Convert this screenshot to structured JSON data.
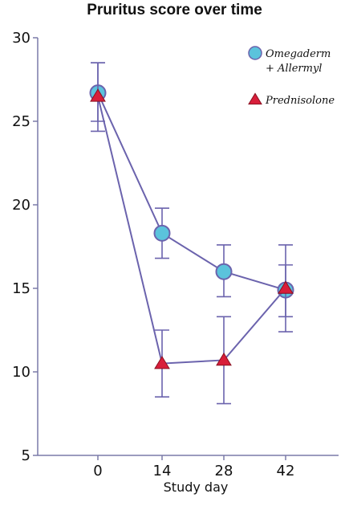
{
  "chart_data": {
    "type": "line",
    "title": "Pruritus score over time",
    "xlabel": "Study day",
    "ylabel": "",
    "x": [
      0,
      14,
      28,
      42
    ],
    "x_tick_labels": [
      "0",
      "14",
      "28",
      "42"
    ],
    "y_ticks": [
      5,
      10,
      15,
      20,
      25,
      30
    ],
    "ylim": [
      5,
      30
    ],
    "grid": false,
    "legend_position": "top-right",
    "series": [
      {
        "name_lines": [
          "Omegaderm",
          "+ Allermyl"
        ],
        "marker": "circle",
        "color": "#5bc3dc",
        "values": [
          26.7,
          18.3,
          16.0,
          14.9
        ],
        "error_low": [
          25.0,
          16.8,
          14.5,
          13.3
        ],
        "error_high": [
          28.5,
          19.8,
          17.6,
          16.4
        ]
      },
      {
        "name_lines": [
          "Prednisolone"
        ],
        "marker": "triangle",
        "color": "#d81e3a",
        "values": [
          26.5,
          10.5,
          10.7,
          15.0
        ],
        "error_low": [
          24.4,
          8.5,
          8.1,
          12.4
        ],
        "error_high": [
          28.5,
          12.5,
          13.3,
          17.6
        ]
      }
    ],
    "line_color": "#6b63ad"
  }
}
